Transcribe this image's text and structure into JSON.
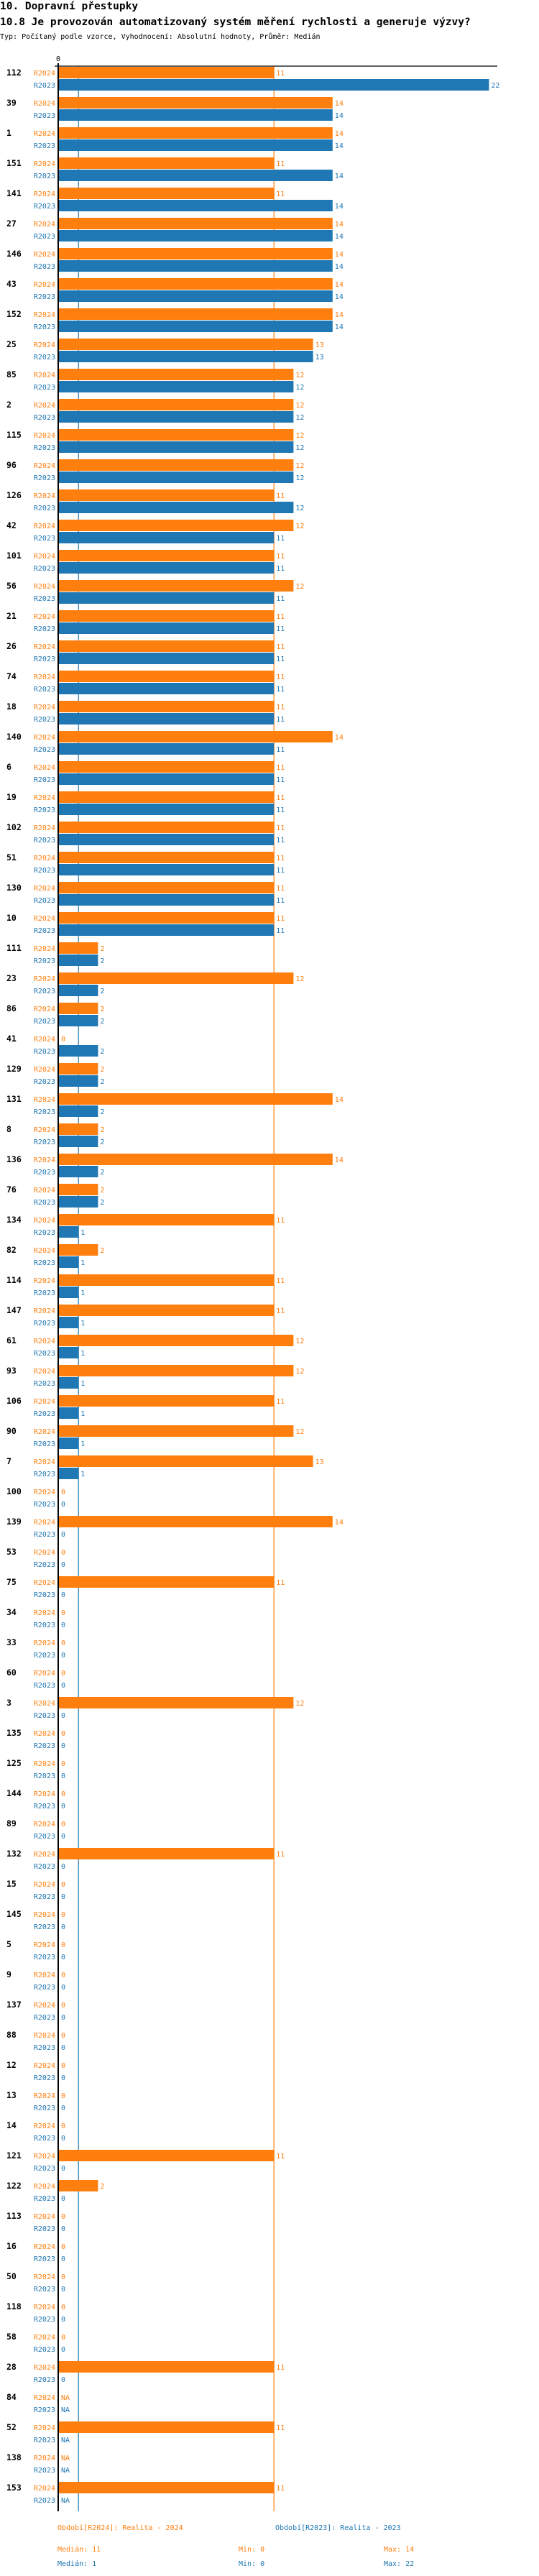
{
  "header": {
    "section_title": "10. Dopravní přestupky",
    "question_title": "10.8 Je provozován automatizovaný systém měření rychlosti a generuje výzvy?",
    "subtitle": "Typ: Počítaný podle vzorce, Vyhodnocení: Absolutní hodnoty, Průměr: Medián"
  },
  "chart_data": {
    "type": "bar",
    "orientation": "horizontal",
    "axis_tick_label": "0",
    "xlim": [
      0,
      22
    ],
    "na_label": "NA",
    "colors": {
      "R2024": "#ff7f0e",
      "R2023": "#1f77b4"
    },
    "series_labels": [
      "R2024",
      "R2023"
    ],
    "categories": [
      "112",
      "39",
      "1",
      "151",
      "141",
      "27",
      "146",
      "43",
      "152",
      "25",
      "85",
      "2",
      "115",
      "96",
      "126",
      "42",
      "101",
      "56",
      "21",
      "26",
      "74",
      "18",
      "140",
      "6",
      "19",
      "102",
      "51",
      "130",
      "10",
      "111",
      "23",
      "86",
      "41",
      "129",
      "131",
      "8",
      "136",
      "76",
      "134",
      "82",
      "114",
      "147",
      "61",
      "93",
      "106",
      "90",
      "7",
      "100",
      "139",
      "53",
      "75",
      "34",
      "33",
      "60",
      "3",
      "135",
      "125",
      "144",
      "89",
      "132",
      "15",
      "145",
      "5",
      "9",
      "137",
      "88",
      "12",
      "13",
      "14",
      "121",
      "122",
      "113",
      "16",
      "50",
      "118",
      "58",
      "28",
      "84",
      "52",
      "138",
      "153"
    ],
    "series": [
      {
        "name": "R2024",
        "values": [
          11,
          14,
          14,
          11,
          11,
          14,
          14,
          14,
          14,
          13,
          12,
          12,
          12,
          12,
          11,
          12,
          11,
          12,
          11,
          11,
          11,
          11,
          14,
          11,
          11,
          11,
          11,
          11,
          11,
          2,
          12,
          2,
          0,
          2,
          14,
          2,
          14,
          2,
          11,
          2,
          11,
          11,
          12,
          12,
          11,
          12,
          13,
          0,
          14,
          0,
          11,
          0,
          0,
          0,
          12,
          0,
          0,
          0,
          0,
          11,
          0,
          0,
          0,
          0,
          0,
          0,
          0,
          0,
          0,
          11,
          2,
          0,
          0,
          0,
          0,
          0,
          11,
          null,
          11,
          null,
          11
        ]
      },
      {
        "name": "R2023",
        "values": [
          22,
          14,
          14,
          14,
          14,
          14,
          14,
          14,
          14,
          13,
          12,
          12,
          12,
          12,
          12,
          11,
          11,
          11,
          11,
          11,
          11,
          11,
          11,
          11,
          11,
          11,
          11,
          11,
          11,
          2,
          2,
          2,
          2,
          2,
          2,
          2,
          2,
          2,
          1,
          1,
          1,
          1,
          1,
          1,
          1,
          1,
          1,
          0,
          0,
          0,
          0,
          0,
          0,
          0,
          0,
          0,
          0,
          0,
          0,
          0,
          0,
          0,
          0,
          0,
          0,
          0,
          0,
          0,
          0,
          0,
          0,
          0,
          0,
          0,
          0,
          0,
          0,
          null,
          null,
          null,
          null
        ]
      }
    ],
    "reference_lines": [
      {
        "series": "R2024",
        "stat": "median",
        "value": 11
      },
      {
        "series": "R2023",
        "stat": "median",
        "value": 1
      }
    ],
    "legend": {
      "placement": "bottom",
      "R2024": {
        "label": "Období[R2024]: Realita - 2024",
        "median": "Medián: 11",
        "min": "Min: 0",
        "max": "Max: 14"
      },
      "R2023": {
        "label": "Období[R2023]: Realita - 2023",
        "median": "Medián: 1",
        "min": "Min: 0",
        "max": "Max: 22"
      }
    }
  }
}
